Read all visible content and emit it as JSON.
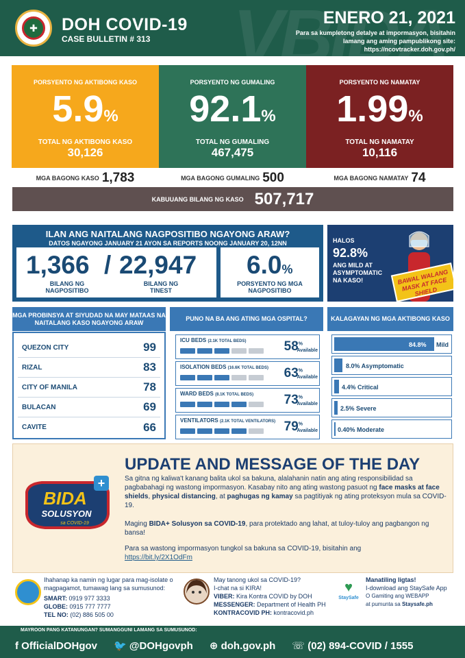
{
  "header": {
    "title": "DOH COVID-19",
    "bulletin": "CASE BULLETIN # 313",
    "date": "ENERO 21, 2021",
    "note": "Para sa kumpletong detalye at impormasyon, bisitahin lamang ang aming pampublikong site: https://ncovtracker.doh.gov.ph/",
    "watermark": "VBIDA"
  },
  "active": {
    "label": "PORSYENTO NG AKTIBONG KASO",
    "pct": "5.9",
    "pct_sign": "%",
    "total_label": "TOTAL NG AKTIBONG KASO",
    "total": "30,126",
    "color": "#f6a81c"
  },
  "recovered": {
    "label": "PORSYENTO NG GUMALING",
    "pct": "92.1",
    "pct_sign": "%",
    "total_label": "TOTAL NG GUMALING",
    "total": "467,475",
    "color": "#2e7358"
  },
  "deaths": {
    "label": "PORSYENTO NG NAMATAY",
    "pct": "1.99",
    "pct_sign": "%",
    "total_label": "TOTAL NG NAMATAY",
    "total": "10,116",
    "color": "#7b2122"
  },
  "new": {
    "cases_label": "MGA BAGONG KASO",
    "cases": "1,783",
    "recovered_label": "MGA BAGONG GUMALING",
    "recovered": "500",
    "deaths_label": "MGA BAGONG NAMATAY",
    "deaths": "74"
  },
  "total": {
    "label": "KABUUANG BILANG NG KASO",
    "value": "507,717"
  },
  "testing": {
    "title": "ILAN ANG NAITALANG NAGPOSITIBO NGAYONG ARAW?",
    "subtitle": "DATOS NGAYONG JANUARY 21 AYON SA REPORTS NOONG JANUARY 20, 12NN",
    "positive": "1,366",
    "positive_label": "BILANG NG NAGPOSITIBO",
    "slash": "/",
    "tested": "22,947",
    "tested_label": "BILANG NG TINEST",
    "rate": "6.0",
    "rate_sign": "%",
    "rate_label": "PORSYENTO NG MGA NAGPOSITIBO"
  },
  "mild": {
    "halos": "HALOS",
    "pct": "92.8%",
    "text": "ANG MILD AT ASYMPTOMATIC NA KASO!",
    "sign": "BAWAL WALANG MASK AT FACE SHIELD"
  },
  "provinces": {
    "header": "MGA PROBINSYA AT SIYUDAD NA MAY MATAAS NA NAITALANG KASO NGAYONG ARAW",
    "items": [
      {
        "name": "QUEZON CITY",
        "count": "99"
      },
      {
        "name": "RIZAL",
        "count": "83"
      },
      {
        "name": "CITY OF MANILA",
        "count": "78"
      },
      {
        "name": "BULACAN",
        "count": "69"
      },
      {
        "name": "CAVITE",
        "count": "66"
      }
    ]
  },
  "hospitals": {
    "header": "PUNO NA BA ANG ATING MGA OSPITAL?",
    "available": "Available",
    "items": [
      {
        "label": "ICU BEDS",
        "sub": "(2.1K TOTAL BEDS)",
        "pct": "58"
      },
      {
        "label": "ISOLATION BEDS",
        "sub": "(16.6K TOTAL BEDS)",
        "pct": "63"
      },
      {
        "label": "WARD BEDS",
        "sub": "(8.1K TOTAL BEDS)",
        "pct": "73"
      },
      {
        "label": "VENTILATORS",
        "sub": "(2.1K TOTAL VENTILATORS)",
        "pct": "79"
      }
    ],
    "pct_sign": "%"
  },
  "status": {
    "header": "KALAGAYAN NG MGA AKTIBONG KASO",
    "items": [
      {
        "text": "84.8%",
        "label": "Mild",
        "value": 84.8
      },
      {
        "text": "8.0% Asymptomatic",
        "value": 8.0
      },
      {
        "text": "4.4% Critical",
        "value": 4.4
      },
      {
        "text": "2.5% Severe",
        "value": 2.5
      },
      {
        "text": "0.40% Moderate",
        "value": 0.4
      }
    ]
  },
  "message": {
    "title": "UPDATE AND MESSAGE OF THE DAY",
    "p1a": "Sa gitna ng kaliwa't kanang balita ukol sa bakuna, alalahanin natin ang ating responsibilidad sa pagbabahagi ng wastong impormasyon. Kasabay nito ang ating wastong pasuot ng ",
    "p1b": "face masks at face shields",
    "p1c": ", ",
    "p1d": "physical distancing",
    "p1e": ", at ",
    "p1f": "paghugas ng kamay",
    "p1g": " sa pagtitiyak ng ating proteksyon mula sa COVID-19.",
    "p2a": "Maging ",
    "p2b": "BIDA+ Solusyon sa COVID-19",
    "p2c": ", para protektado ang lahat, at tuloy-tuloy ang pagbangon ng bansa!",
    "p3": "Para sa wastong impormasyon tungkol sa bakuna sa COVID-19, bisitahin ang",
    "link": "https://bit.ly/2X1OdFm",
    "logo_top": "BIDA",
    "logo_bottom": "SOLUSYON",
    "logo_sub": "sa COVID-19"
  },
  "info": {
    "isolate": "Ihahanap ka namin ng lugar para mag-isolate o magpagamot, tumawag lang sa sumusunod:",
    "smart_label": "SMART:",
    "smart": "0919 977 3333",
    "globe_label": "GLOBE:",
    "globe": "0915 777 7777",
    "tel_label": "TEL NO:",
    "tel": "(02) 886 505 00",
    "kira_q": "May tanong ukol sa COVID-19?",
    "kira_chat": "I-chat na si KIRA!",
    "viber_label": "VIBER:",
    "viber": "Kira Kontra COVID by DOH",
    "messenger_label": "MESSENGER:",
    "messenger": "Department of Health PH",
    "kontra_label": "KONTRACOVID PH:",
    "kontra": "kontracovid.ph",
    "staysafe1": "Manatiling ligtas!",
    "staysafe2": "I-download ang StaySafe App",
    "staysafe3": "O Gamiting ang WEBAPP",
    "staysafe4": "at pumunta sa",
    "staysafe5": "Staysafe.ph",
    "staysafe_logo": "StaySafe"
  },
  "footer": {
    "question": "MAYROON PANG KATANUNGAN? SUMANGGUNI LAMANG SA SUMUSUNOD:",
    "facebook": "OfficialDOHgov",
    "twitter": "@DOHgovph",
    "web": "doh.gov.ph",
    "phone": "(02) 894-COVID  /  1555"
  }
}
